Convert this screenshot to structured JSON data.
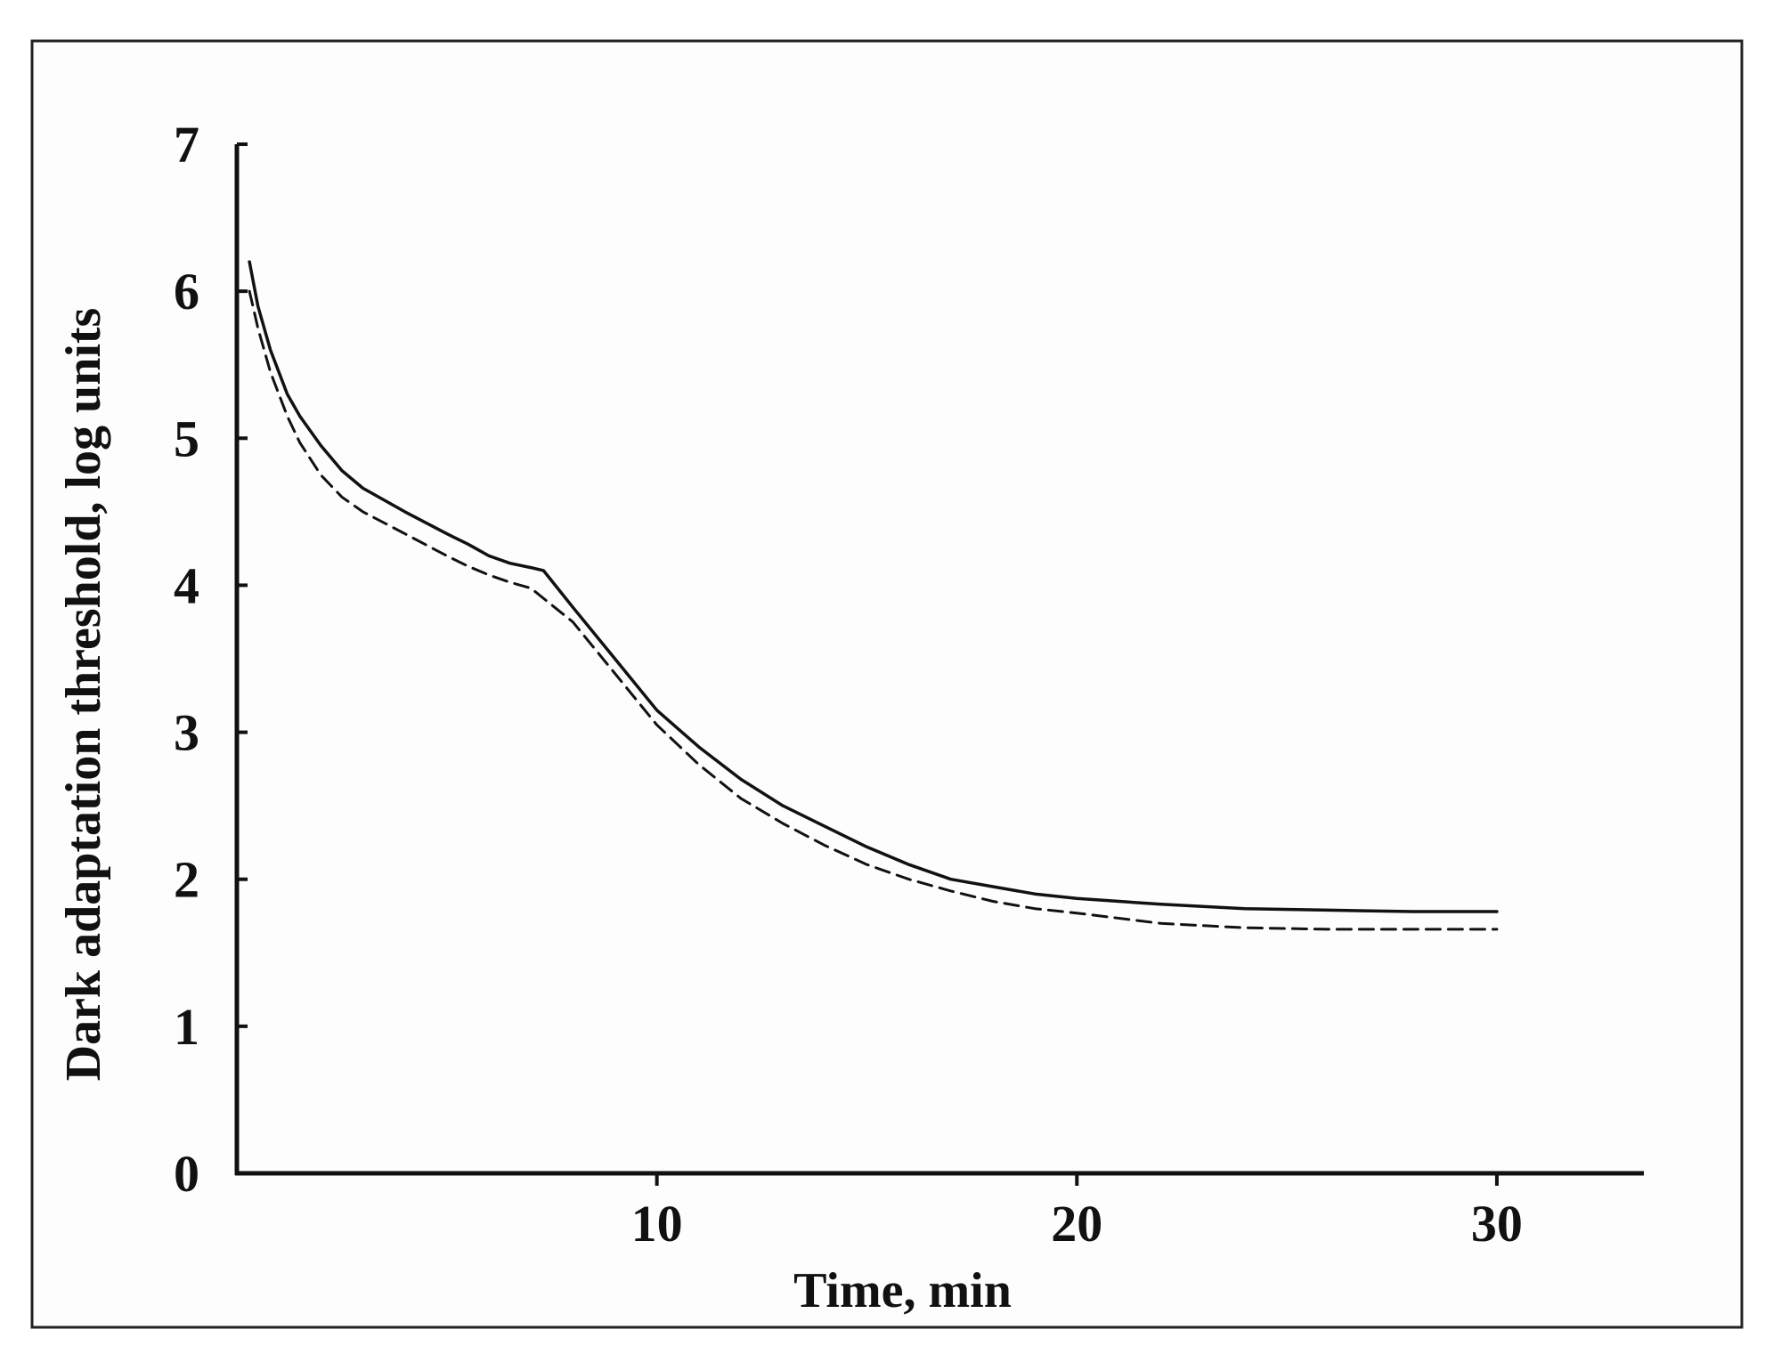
{
  "chart_data": {
    "type": "line",
    "title": "",
    "xlabel": "Time, min",
    "ylabel": "Dark adaptation threshold, log units",
    "xlim": [
      0,
      33.5
    ],
    "ylim": [
      0,
      7
    ],
    "x_ticks": [
      10,
      20,
      30
    ],
    "x_tick_labels": [
      "10",
      "20",
      "30"
    ],
    "y_ticks": [
      0,
      1,
      2,
      3,
      4,
      5,
      6,
      7
    ],
    "y_tick_labels": [
      "0",
      "1",
      "2",
      "3",
      "4",
      "5",
      "6",
      "7"
    ],
    "grid": false,
    "legend": false,
    "series": [
      {
        "style": "solid",
        "color": "#111111",
        "points": [
          [
            0.3,
            6.2
          ],
          [
            0.5,
            5.9
          ],
          [
            0.8,
            5.6
          ],
          [
            1.2,
            5.3
          ],
          [
            1.5,
            5.15
          ],
          [
            2.0,
            4.95
          ],
          [
            2.5,
            4.78
          ],
          [
            3.0,
            4.66
          ],
          [
            4.0,
            4.5
          ],
          [
            5.0,
            4.35
          ],
          [
            5.5,
            4.28
          ],
          [
            6.0,
            4.2
          ],
          [
            6.5,
            4.15
          ],
          [
            7.0,
            4.12
          ],
          [
            7.3,
            4.1
          ],
          [
            8.0,
            3.85
          ],
          [
            9.0,
            3.5
          ],
          [
            10.0,
            3.15
          ],
          [
            11.0,
            2.9
          ],
          [
            12.0,
            2.68
          ],
          [
            13.0,
            2.5
          ],
          [
            14.0,
            2.36
          ],
          [
            15.0,
            2.22
          ],
          [
            16.0,
            2.1
          ],
          [
            17.0,
            2.0
          ],
          [
            18.0,
            1.95
          ],
          [
            19.0,
            1.9
          ],
          [
            20.0,
            1.87
          ],
          [
            22.0,
            1.83
          ],
          [
            24.0,
            1.8
          ],
          [
            26.0,
            1.79
          ],
          [
            28.0,
            1.78
          ],
          [
            30.0,
            1.78
          ]
        ]
      },
      {
        "style": "dashed",
        "color": "#111111",
        "points": [
          [
            0.3,
            6.0
          ],
          [
            0.5,
            5.75
          ],
          [
            0.8,
            5.45
          ],
          [
            1.2,
            5.15
          ],
          [
            1.5,
            4.97
          ],
          [
            2.0,
            4.75
          ],
          [
            2.5,
            4.6
          ],
          [
            3.0,
            4.5
          ],
          [
            4.0,
            4.35
          ],
          [
            5.0,
            4.2
          ],
          [
            5.5,
            4.13
          ],
          [
            6.0,
            4.07
          ],
          [
            6.5,
            4.02
          ],
          [
            7.0,
            3.98
          ],
          [
            8.0,
            3.75
          ],
          [
            9.0,
            3.4
          ],
          [
            10.0,
            3.05
          ],
          [
            11.0,
            2.78
          ],
          [
            12.0,
            2.55
          ],
          [
            13.0,
            2.38
          ],
          [
            14.0,
            2.23
          ],
          [
            15.0,
            2.1
          ],
          [
            16.0,
            2.0
          ],
          [
            17.0,
            1.92
          ],
          [
            18.0,
            1.85
          ],
          [
            19.0,
            1.8
          ],
          [
            20.0,
            1.77
          ],
          [
            22.0,
            1.7
          ],
          [
            24.0,
            1.67
          ],
          [
            26.0,
            1.66
          ],
          [
            28.0,
            1.66
          ],
          [
            30.0,
            1.66
          ]
        ]
      }
    ]
  }
}
